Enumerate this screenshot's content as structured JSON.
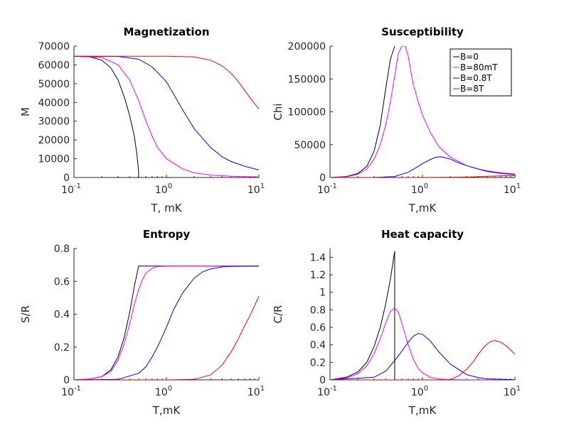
{
  "colors": {
    "B0": "#000000",
    "B80mT": "#ff00ff",
    "B08T": "#0000ff",
    "B8T": "#ff0000",
    "axis": "#262626"
  },
  "chart_data": [
    {
      "type": "line",
      "title": "Magnetization",
      "xlabel": "T, mK",
      "ylabel": "M",
      "xscale": "log",
      "xlim": [
        0.1,
        10
      ],
      "ylim": [
        0,
        70000
      ],
      "x_ticks": [
        {
          "base": "10",
          "exp": "-1"
        },
        {
          "base": "10",
          "exp": "0"
        },
        {
          "base": "10",
          "exp": "1"
        }
      ],
      "y_ticks": [
        "0",
        "10000",
        "20000",
        "30000",
        "40000",
        "50000",
        "60000",
        "70000"
      ],
      "y_tick_values": [
        0,
        10000,
        20000,
        30000,
        40000,
        50000,
        60000,
        70000
      ],
      "series": [
        {
          "name": "B=0",
          "color": "#000000",
          "x": [
            0.1,
            0.15,
            0.2,
            0.25,
            0.3,
            0.35,
            0.4,
            0.45,
            0.48,
            0.5,
            0.5
          ],
          "y": [
            64600,
            64200,
            62500,
            58500,
            52000,
            43000,
            33000,
            22000,
            12000,
            3000,
            0
          ]
        },
        {
          "name": "B=80mT",
          "color": "#ff00ff",
          "x": [
            0.1,
            0.2,
            0.3,
            0.4,
            0.5,
            0.6,
            0.7,
            0.8,
            1.0,
            1.5,
            2,
            3,
            5,
            10
          ],
          "y": [
            64600,
            64000,
            60000,
            52000,
            41000,
            30000,
            22000,
            16000,
            10000,
            4500,
            2500,
            1300,
            700,
            300
          ]
        },
        {
          "name": "B=0.8T",
          "color": "#0000ff",
          "x": [
            0.1,
            0.3,
            0.5,
            0.7,
            1.0,
            1.5,
            2,
            3,
            4,
            5,
            7,
            10
          ],
          "y": [
            64600,
            64500,
            63000,
            59000,
            51000,
            36000,
            26000,
            16000,
            11000,
            8500,
            6000,
            4000
          ]
        },
        {
          "name": "B=8T",
          "color": "#ff0000",
          "x": [
            0.1,
            1,
            2,
            3,
            4,
            5,
            6,
            7,
            8,
            10
          ],
          "y": [
            64600,
            64600,
            64300,
            62500,
            59500,
            55500,
            51000,
            46500,
            42500,
            36500
          ]
        }
      ]
    },
    {
      "type": "line",
      "title": "Susceptibility",
      "xlabel": "T,mK",
      "ylabel": "Chi",
      "xscale": "log",
      "xlim": [
        0.1,
        10
      ],
      "ylim": [
        0,
        200000
      ],
      "x_ticks": [
        {
          "base": "10",
          "exp": "-1"
        },
        {
          "base": "10",
          "exp": "0"
        },
        {
          "base": "10",
          "exp": "1"
        }
      ],
      "y_ticks": [
        "0",
        "50000",
        "100000",
        "150000",
        "200000"
      ],
      "y_tick_values": [
        0,
        50000,
        100000,
        150000,
        200000
      ],
      "legend": {
        "location": "top-right",
        "entries": [
          "B=0",
          "B=80mT",
          "B=0.8T",
          "B=8T"
        ]
      },
      "series": [
        {
          "name": "B=0",
          "color": "#000000",
          "x": [
            0.1,
            0.15,
            0.2,
            0.25,
            0.3,
            0.35,
            0.4,
            0.45,
            0.5
          ],
          "y": [
            0,
            1500,
            6000,
            17000,
            40000,
            80000,
            135000,
            180000,
            200000
          ]
        },
        {
          "name": "B=80mT",
          "color": "#ff00ff",
          "x": [
            0.1,
            0.15,
            0.2,
            0.25,
            0.3,
            0.35,
            0.4,
            0.45,
            0.5,
            0.55,
            0.6,
            0.65,
            0.7,
            0.75,
            0.8,
            0.9,
            1.0,
            1.2,
            1.5,
            2,
            3,
            5,
            7,
            10
          ],
          "y": [
            0,
            1000,
            5000,
            13000,
            28000,
            50000,
            80000,
            115000,
            155000,
            190000,
            200000,
            200000,
            185000,
            160000,
            140000,
            115000,
            95000,
            70000,
            47000,
            31000,
            18000,
            9000,
            6000,
            4000
          ]
        },
        {
          "name": "B=0.8T",
          "color": "#0000ff",
          "x": [
            0.1,
            0.3,
            0.5,
            0.7,
            0.9,
            1.0,
            1.2,
            1.4,
            1.6,
            2,
            2.5,
            3,
            4,
            5,
            7,
            10
          ],
          "y": [
            0,
            0,
            1500,
            8000,
            17000,
            21000,
            27000,
            31000,
            31500,
            28000,
            22000,
            18000,
            13000,
            10000,
            7000,
            5000
          ]
        },
        {
          "name": "B=8T",
          "color": "#ff0000",
          "x": [
            0.1,
            1,
            2,
            3,
            4,
            5,
            6,
            8,
            10
          ],
          "y": [
            0,
            0,
            200,
            700,
            1200,
            1800,
            2200,
            2700,
            3000
          ]
        }
      ]
    },
    {
      "type": "line",
      "title": "Entropy",
      "xlabel": "T,mK",
      "ylabel": "S/R",
      "xscale": "log",
      "xlim": [
        0.1,
        10
      ],
      "ylim": [
        0,
        0.8
      ],
      "x_ticks": [
        {
          "base": "10",
          "exp": "-1"
        },
        {
          "base": "10",
          "exp": "0"
        },
        {
          "base": "10",
          "exp": "1"
        }
      ],
      "y_ticks": [
        "0",
        "0.2",
        "0.4",
        "0.6",
        "0.8"
      ],
      "y_tick_values": [
        0,
        0.2,
        0.4,
        0.6,
        0.8
      ],
      "series": [
        {
          "name": "B=0",
          "color": "#000000",
          "x": [
            0.1,
            0.15,
            0.2,
            0.25,
            0.3,
            0.35,
            0.4,
            0.45,
            0.5,
            1,
            10
          ],
          "y": [
            0,
            0.005,
            0.02,
            0.06,
            0.14,
            0.26,
            0.41,
            0.57,
            0.693,
            0.693,
            0.693
          ]
        },
        {
          "name": "B=80mT",
          "color": "#ff00ff",
          "x": [
            0.1,
            0.15,
            0.2,
            0.25,
            0.3,
            0.35,
            0.4,
            0.45,
            0.5,
            0.55,
            0.6,
            0.7,
            0.8,
            1,
            1.5,
            10
          ],
          "y": [
            0,
            0.005,
            0.02,
            0.05,
            0.12,
            0.22,
            0.34,
            0.46,
            0.55,
            0.61,
            0.65,
            0.68,
            0.69,
            0.692,
            0.693,
            0.693
          ]
        },
        {
          "name": "B=0.8T",
          "color": "#0000ff",
          "x": [
            0.1,
            0.3,
            0.5,
            0.6,
            0.7,
            0.8,
            1.0,
            1.2,
            1.5,
            2,
            2.5,
            3,
            4,
            5,
            7,
            10
          ],
          "y": [
            0,
            0.003,
            0.04,
            0.08,
            0.14,
            0.2,
            0.32,
            0.43,
            0.53,
            0.62,
            0.66,
            0.675,
            0.688,
            0.691,
            0.692,
            0.693
          ]
        },
        {
          "name": "B=8T",
          "color": "#ff0000",
          "x": [
            0.1,
            1,
            2,
            3,
            4,
            5,
            6,
            7,
            8,
            10
          ],
          "y": [
            0,
            0,
            0.003,
            0.03,
            0.09,
            0.17,
            0.25,
            0.33,
            0.39,
            0.51
          ]
        }
      ]
    },
    {
      "type": "line",
      "title": "Heat capacity",
      "xlabel": "T,mK",
      "ylabel": "C/R",
      "xscale": "log",
      "xlim": [
        0.1,
        10
      ],
      "ylim": [
        0,
        1.5
      ],
      "x_ticks": [
        {
          "base": "10",
          "exp": "-1"
        },
        {
          "base": "10",
          "exp": "0"
        },
        {
          "base": "10",
          "exp": "1"
        }
      ],
      "y_ticks": [
        "0",
        "0.2",
        "0.4",
        "0.6",
        "0.8",
        "1",
        "1.2",
        "1.4"
      ],
      "y_tick_values": [
        0,
        0.2,
        0.4,
        0.6,
        0.8,
        1,
        1.2,
        1.4
      ],
      "series": [
        {
          "name": "B=0",
          "color": "#000000",
          "x": [
            0.1,
            0.15,
            0.2,
            0.25,
            0.3,
            0.35,
            0.4,
            0.45,
            0.5,
            0.5,
            0.6,
            1,
            10
          ],
          "y": [
            0,
            0.03,
            0.09,
            0.2,
            0.38,
            0.6,
            0.87,
            1.15,
            1.47,
            0,
            0,
            0,
            0
          ]
        },
        {
          "name": "B=80mT",
          "color": "#ff00ff",
          "x": [
            0.1,
            0.15,
            0.2,
            0.25,
            0.3,
            0.35,
            0.4,
            0.45,
            0.5,
            0.55,
            0.6,
            0.7,
            0.8,
            0.9,
            1.0,
            1.2,
            1.5,
            2,
            3,
            10
          ],
          "y": [
            0,
            0.02,
            0.07,
            0.16,
            0.3,
            0.47,
            0.65,
            0.78,
            0.82,
            0.77,
            0.64,
            0.4,
            0.23,
            0.13,
            0.08,
            0.03,
            0.01,
            0.003,
            0,
            0
          ]
        },
        {
          "name": "B=0.8T",
          "color": "#0000ff",
          "x": [
            0.1,
            0.3,
            0.4,
            0.5,
            0.6,
            0.7,
            0.8,
            0.9,
            1.0,
            1.2,
            1.5,
            2,
            3,
            4,
            5,
            10
          ],
          "y": [
            0,
            0.03,
            0.1,
            0.22,
            0.33,
            0.43,
            0.5,
            0.53,
            0.52,
            0.45,
            0.32,
            0.18,
            0.06,
            0.025,
            0.012,
            0.001
          ]
        },
        {
          "name": "B=8T",
          "color": "#ff0000",
          "x": [
            0.1,
            2,
            2.5,
            3,
            3.5,
            4,
            4.5,
            5,
            5.5,
            6,
            7,
            8,
            9,
            10
          ],
          "y": [
            0,
            0,
            0.05,
            0.12,
            0.2,
            0.29,
            0.36,
            0.41,
            0.44,
            0.45,
            0.43,
            0.39,
            0.34,
            0.29
          ]
        }
      ]
    }
  ]
}
